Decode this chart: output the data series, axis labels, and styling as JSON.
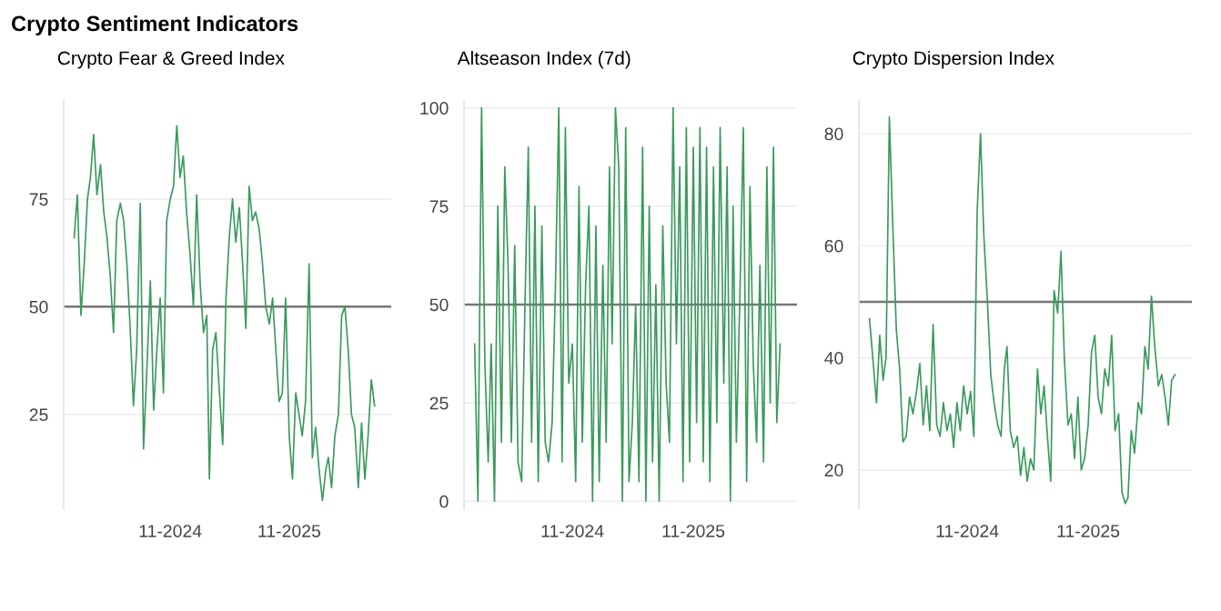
{
  "chart_data": [
    {
      "type": "line",
      "title": "Crypto Fear & Greed Index",
      "annotations": [
        "Crypto Sentiment Indicators"
      ],
      "grid": "y",
      "marker": "none",
      "line_style": "solid",
      "x": [
        "2024-01-11",
        "2024-01-21",
        "2024-02-01",
        "2024-02-11",
        "2024-02-21",
        "2024-03-01",
        "2024-03-11",
        "2024-03-21",
        "2024-04-01",
        "2024-04-11",
        "2024-04-21",
        "2024-05-01",
        "2024-05-11",
        "2024-05-21",
        "2024-06-01",
        "2024-06-11",
        "2024-06-21",
        "2024-07-01",
        "2024-07-11",
        "2024-07-21",
        "2024-08-01",
        "2024-08-11",
        "2024-08-21",
        "2024-09-01",
        "2024-09-11",
        "2024-09-21",
        "2024-10-01",
        "2024-10-11",
        "2024-10-21",
        "2024-11-01",
        "2024-11-11",
        "2024-11-21",
        "2024-12-01",
        "2024-12-11",
        "2024-12-21",
        "2025-01-01",
        "2025-01-11",
        "2025-01-21",
        "2025-02-01",
        "2025-02-11",
        "2025-02-21",
        "2025-03-01",
        "2025-03-11",
        "2025-03-21",
        "2025-04-01",
        "2025-04-11",
        "2025-04-21",
        "2025-05-01",
        "2025-05-11",
        "2025-05-21",
        "2025-06-01",
        "2025-06-11",
        "2025-06-21",
        "2025-07-01",
        "2025-07-11",
        "2025-07-21",
        "2025-08-01",
        "2025-08-11",
        "2025-08-21",
        "2025-09-01",
        "2025-09-11",
        "2025-09-21",
        "2025-10-01",
        "2025-10-11",
        "2025-10-21",
        "2025-11-01",
        "2025-11-11",
        "2025-11-21",
        "2025-12-01",
        "2025-12-11",
        "2025-12-21",
        "2026-01-01",
        "2026-01-11",
        "2026-01-21",
        "2026-02-01",
        "2026-02-11",
        "2026-02-21",
        "2026-03-01",
        "2026-03-11",
        "2026-03-21",
        "2026-04-01",
        "2026-04-11",
        "2026-04-21",
        "2026-05-01",
        "2026-05-11",
        "2026-05-21",
        "2026-06-01",
        "2026-06-11",
        "2026-06-21",
        "2026-07-01",
        "2026-07-11",
        "2026-07-21"
      ],
      "series": [
        {
          "color": "#3a9a5c",
          "values": [
            66,
            76,
            48,
            60,
            75,
            80,
            90,
            76,
            83,
            72,
            66,
            57,
            44,
            70,
            74,
            70,
            60,
            45,
            27,
            40,
            74,
            17,
            35,
            56,
            26,
            40,
            52,
            30,
            70,
            75,
            78,
            92,
            80,
            85,
            72,
            62,
            50,
            76,
            55,
            44,
            48,
            10,
            40,
            44,
            30,
            18,
            52,
            66,
            75,
            65,
            73,
            60,
            45,
            78,
            70,
            72,
            68,
            60,
            50,
            46,
            52,
            40,
            28,
            30,
            52,
            20,
            10,
            30,
            25,
            20,
            28,
            60,
            15,
            22,
            12,
            5,
            12,
            15,
            8,
            20,
            25,
            48,
            50,
            40,
            25,
            22,
            8,
            23,
            10,
            20,
            33,
            27
          ]
        }
      ],
      "xlim": [
        "2023-12-10",
        "2026-09-10"
      ],
      "xticks": [
        {
          "value": "2024-11-01",
          "label": "11-2024"
        },
        {
          "value": "2025-11-01",
          "label": "11-2025"
        }
      ],
      "ylim": [
        3,
        98
      ],
      "yticks": [
        25,
        50,
        75
      ],
      "ref_lines": [
        {
          "axis": "y",
          "value": 50,
          "color": "#777777"
        }
      ]
    },
    {
      "type": "line",
      "title": "Altseason Index (7d)",
      "grid": "y",
      "marker": "none",
      "line_style": "solid",
      "x": [
        "2024-01-11",
        "2024-01-21",
        "2024-02-01",
        "2024-02-11",
        "2024-02-21",
        "2024-03-01",
        "2024-03-11",
        "2024-03-21",
        "2024-04-01",
        "2024-04-11",
        "2024-04-21",
        "2024-05-01",
        "2024-05-11",
        "2024-05-21",
        "2024-06-01",
        "2024-06-11",
        "2024-06-21",
        "2024-07-01",
        "2024-07-11",
        "2024-07-21",
        "2024-08-01",
        "2024-08-11",
        "2024-08-21",
        "2024-09-01",
        "2024-09-11",
        "2024-09-21",
        "2024-10-01",
        "2024-10-11",
        "2024-10-21",
        "2024-11-01",
        "2024-11-11",
        "2024-11-21",
        "2024-12-01",
        "2024-12-11",
        "2024-12-21",
        "2025-01-01",
        "2025-01-11",
        "2025-01-21",
        "2025-02-01",
        "2025-02-11",
        "2025-02-21",
        "2025-03-01",
        "2025-03-11",
        "2025-03-21",
        "2025-04-01",
        "2025-04-11",
        "2025-04-21",
        "2025-05-01",
        "2025-05-11",
        "2025-05-21",
        "2025-06-01",
        "2025-06-11",
        "2025-06-21",
        "2025-07-01",
        "2025-07-11",
        "2025-07-21",
        "2025-08-01",
        "2025-08-11",
        "2025-08-21",
        "2025-09-01",
        "2025-09-11",
        "2025-09-21",
        "2025-10-01",
        "2025-10-11",
        "2025-10-21",
        "2025-11-01",
        "2025-11-11",
        "2025-11-21",
        "2025-12-01",
        "2025-12-11",
        "2025-12-21",
        "2026-01-01",
        "2026-01-11",
        "2026-01-21",
        "2026-02-01",
        "2026-02-11",
        "2026-02-21",
        "2026-03-01",
        "2026-03-11",
        "2026-03-21",
        "2026-04-01",
        "2026-04-11",
        "2026-04-21",
        "2026-05-01",
        "2026-05-11",
        "2026-05-21",
        "2026-06-01",
        "2026-06-11",
        "2026-06-21",
        "2026-07-01",
        "2026-07-11",
        "2026-07-21"
      ],
      "series": [
        {
          "color": "#3a9a5c",
          "values": [
            40,
            0,
            100,
            35,
            10,
            40,
            0,
            75,
            15,
            85,
            60,
            15,
            65,
            10,
            5,
            50,
            90,
            15,
            75,
            5,
            70,
            15,
            10,
            20,
            55,
            100,
            10,
            95,
            30,
            40,
            5,
            80,
            15,
            55,
            75,
            0,
            70,
            5,
            60,
            15,
            85,
            40,
            100,
            85,
            0,
            95,
            5,
            20,
            50,
            5,
            90,
            0,
            75,
            10,
            55,
            0,
            70,
            30,
            15,
            100,
            40,
            85,
            5,
            95,
            10,
            90,
            20,
            95,
            10,
            90,
            5,
            85,
            20,
            95,
            30,
            85,
            0,
            75,
            15,
            50,
            95,
            5,
            80,
            35,
            15,
            60,
            10,
            85,
            25,
            90,
            20,
            40
          ]
        }
      ],
      "xlim": [
        "2023-12-10",
        "2026-09-10"
      ],
      "xticks": [
        {
          "value": "2024-11-01",
          "label": "11-2024"
        },
        {
          "value": "2025-11-01",
          "label": "11-2025"
        }
      ],
      "ylim": [
        -2,
        102
      ],
      "yticks": [
        0,
        25,
        50,
        75,
        100
      ],
      "ref_lines": [
        {
          "axis": "y",
          "value": 50,
          "color": "#777777"
        }
      ]
    },
    {
      "type": "line",
      "title": "Crypto Dispersion Index",
      "grid": "y",
      "marker": "none",
      "line_style": "solid",
      "x": [
        "2024-01-11",
        "2024-01-21",
        "2024-02-01",
        "2024-02-11",
        "2024-02-21",
        "2024-03-01",
        "2024-03-11",
        "2024-03-21",
        "2024-04-01",
        "2024-04-11",
        "2024-04-21",
        "2024-05-01",
        "2024-05-11",
        "2024-05-21",
        "2024-06-01",
        "2024-06-11",
        "2024-06-21",
        "2024-07-01",
        "2024-07-11",
        "2024-07-21",
        "2024-08-01",
        "2024-08-11",
        "2024-08-21",
        "2024-09-01",
        "2024-09-11",
        "2024-09-21",
        "2024-10-01",
        "2024-10-11",
        "2024-10-21",
        "2024-11-01",
        "2024-11-11",
        "2024-11-21",
        "2024-12-01",
        "2024-12-11",
        "2024-12-21",
        "2025-01-01",
        "2025-01-11",
        "2025-01-21",
        "2025-02-01",
        "2025-02-11",
        "2025-02-21",
        "2025-03-01",
        "2025-03-11",
        "2025-03-21",
        "2025-04-01",
        "2025-04-11",
        "2025-04-21",
        "2025-05-01",
        "2025-05-11",
        "2025-05-21",
        "2025-06-01",
        "2025-06-11",
        "2025-06-21",
        "2025-07-01",
        "2025-07-11",
        "2025-07-21",
        "2025-08-01",
        "2025-08-11",
        "2025-08-21",
        "2025-09-01",
        "2025-09-11",
        "2025-09-21",
        "2025-10-01",
        "2025-10-11",
        "2025-10-21",
        "2025-11-01",
        "2025-11-11",
        "2025-11-21",
        "2025-12-01",
        "2025-12-11",
        "2025-12-21",
        "2026-01-01",
        "2026-01-11",
        "2026-01-21",
        "2026-02-01",
        "2026-02-11",
        "2026-02-21",
        "2026-03-01",
        "2026-03-11",
        "2026-03-21",
        "2026-04-01",
        "2026-04-11",
        "2026-04-21",
        "2026-05-01",
        "2026-05-11",
        "2026-05-21",
        "2026-06-01",
        "2026-06-11",
        "2026-06-21",
        "2026-07-01",
        "2026-07-11",
        "2026-07-21"
      ],
      "series": [
        {
          "color": "#3a9a5c",
          "values": [
            47,
            40,
            32,
            44,
            36,
            40,
            83,
            64,
            45,
            38,
            25,
            26,
            33,
            30,
            34,
            39,
            28,
            35,
            27,
            46,
            28,
            26,
            32,
            27,
            30,
            24,
            32,
            27,
            35,
            30,
            34,
            26,
            66,
            80,
            62,
            50,
            37,
            32,
            28,
            26,
            38,
            42,
            27,
            24,
            26,
            19,
            24,
            18,
            22,
            20,
            38,
            30,
            35,
            26,
            18,
            52,
            48,
            59,
            40,
            28,
            30,
            22,
            33,
            20,
            22,
            28,
            41,
            44,
            33,
            30,
            38,
            35,
            44,
            27,
            30,
            16,
            14,
            15,
            27,
            23,
            32,
            30,
            42,
            38,
            51,
            42,
            35,
            37,
            33,
            28,
            36,
            37
          ]
        }
      ],
      "xlim": [
        "2023-12-10",
        "2026-09-10"
      ],
      "xticks": [
        {
          "value": "2024-11-01",
          "label": "11-2024"
        },
        {
          "value": "2025-11-01",
          "label": "11-2025"
        }
      ],
      "ylim": [
        13,
        86
      ],
      "yticks": [
        20,
        40,
        60,
        80
      ],
      "ref_lines": [
        {
          "axis": "y",
          "value": 50,
          "color": "#777777"
        }
      ]
    }
  ]
}
